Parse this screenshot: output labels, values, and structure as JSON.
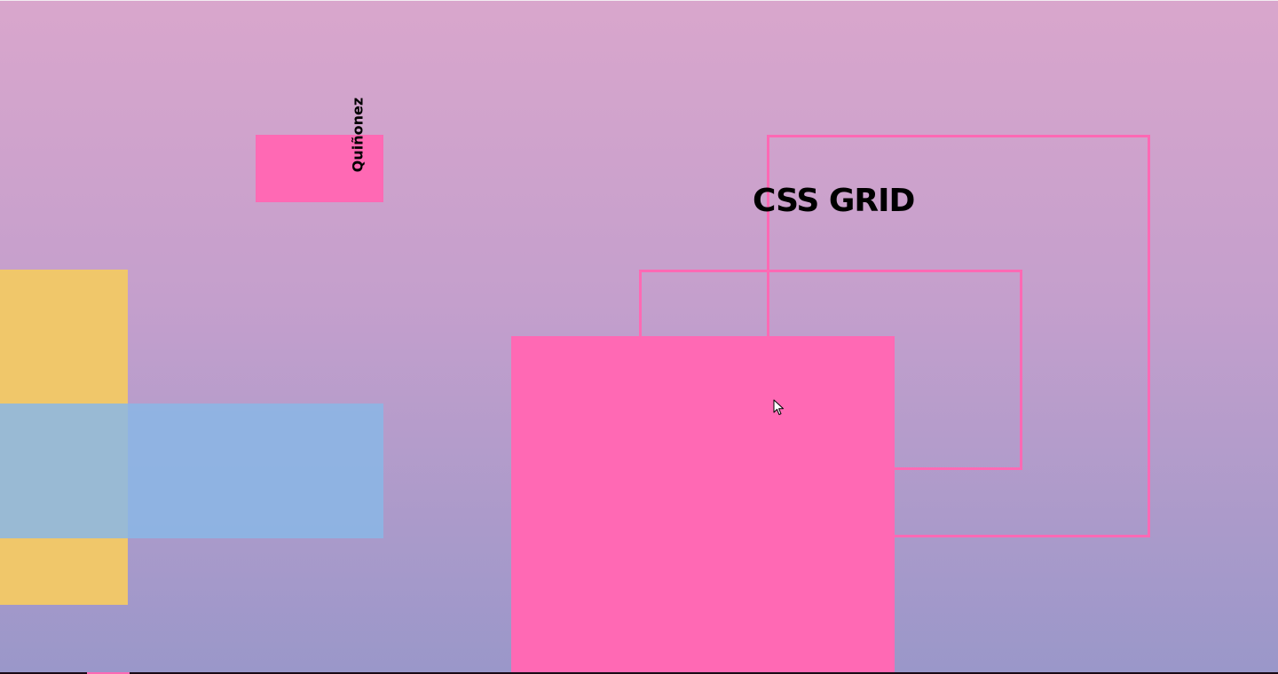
{
  "title": "CSS GRID",
  "name_label": "Quiñonez",
  "colors": {
    "background_top": "#d9a6cc",
    "background_bottom": "#9a97c9",
    "pink": "#ff69b4",
    "yellow": "#f0c76a",
    "blue": "#8ab7e6"
  },
  "icons": {
    "cursor": "mouse-pointer-icon"
  }
}
